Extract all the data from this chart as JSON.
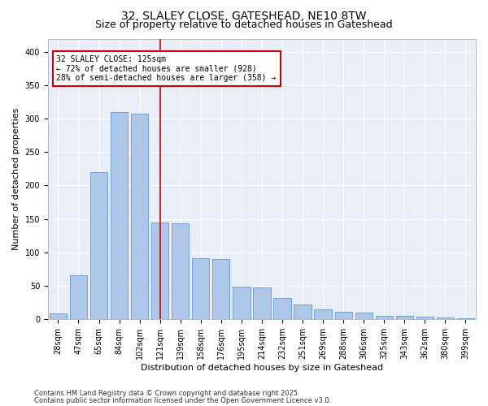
{
  "title1": "32, SLALEY CLOSE, GATESHEAD, NE10 8TW",
  "title2": "Size of property relative to detached houses in Gateshead",
  "xlabel": "Distribution of detached houses by size in Gateshead",
  "ylabel": "Number of detached properties",
  "categories": [
    "28sqm",
    "47sqm",
    "65sqm",
    "84sqm",
    "102sqm",
    "121sqm",
    "139sqm",
    "158sqm",
    "176sqm",
    "195sqm",
    "214sqm",
    "232sqm",
    "251sqm",
    "269sqm",
    "288sqm",
    "306sqm",
    "325sqm",
    "343sqm",
    "362sqm",
    "380sqm",
    "399sqm"
  ],
  "values": [
    8,
    65,
    220,
    310,
    308,
    145,
    143,
    91,
    90,
    48,
    47,
    32,
    22,
    14,
    11,
    10,
    5,
    5,
    4,
    2,
    1
  ],
  "bar_color": "#AEC6E8",
  "bar_edge_color": "#5B9BD5",
  "highlight_bar_index": 5,
  "highlight_bar_color": "#CC0000",
  "annotation_text": "32 SLALEY CLOSE: 125sqm\n← 72% of detached houses are smaller (928)\n28% of semi-detached houses are larger (358) →",
  "annotation_box_color": "#CC0000",
  "ylim": [
    0,
    420
  ],
  "yticks": [
    0,
    50,
    100,
    150,
    200,
    250,
    300,
    350,
    400
  ],
  "background_color": "#E8EEF8",
  "grid_color": "#FFFFFF",
  "footer1": "Contains HM Land Registry data © Crown copyright and database right 2025.",
  "footer2": "Contains public sector information licensed under the Open Government Licence v3.0.",
  "title_fontsize": 10,
  "subtitle_fontsize": 9,
  "xlabel_fontsize": 8,
  "ylabel_fontsize": 8,
  "tick_fontsize": 7,
  "annotation_fontsize": 7,
  "footer_fontsize": 6
}
